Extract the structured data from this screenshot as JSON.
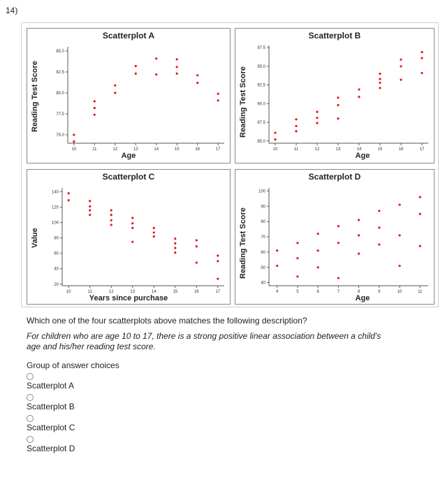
{
  "question_number": "14)",
  "plots": {
    "A": {
      "title": "Scatterplot A",
      "xlabel": "Age",
      "ylabel": "Reading Test Score",
      "xticks": [
        "10",
        "11",
        "12",
        "13",
        "14",
        "15",
        "16",
        "17"
      ],
      "yticks": [
        "85.0",
        "82.5",
        "80.0",
        "77.5",
        "75.0"
      ]
    },
    "B": {
      "title": "Scatterplot B",
      "xlabel": "Age",
      "ylabel": "Reading Test Score",
      "xticks": [
        "10",
        "11",
        "12",
        "13",
        "14",
        "15",
        "16",
        "17"
      ],
      "yticks": [
        "97.5",
        "95.0",
        "92.5",
        "90.0",
        "87.5",
        "85.0"
      ]
    },
    "C": {
      "title": "Scatterplot C",
      "xlabel": "Years since purchase",
      "ylabel": "Value",
      "xticks": [
        "10",
        "11",
        "12",
        "13",
        "14",
        "15",
        "16",
        "17"
      ],
      "yticks": [
        "140",
        "120",
        "100",
        "80",
        "60",
        "40",
        "20"
      ]
    },
    "D": {
      "title": "Scatterplot D",
      "xlabel": "Age",
      "ylabel": "Reading Test Score",
      "xticks": [
        "4",
        "5",
        "6",
        "7",
        "8",
        "9",
        "10",
        "11"
      ],
      "yticks": [
        "100",
        "90",
        "80",
        "70",
        "60",
        "50",
        "40"
      ]
    }
  },
  "chart_data": [
    {
      "type": "scatter",
      "title": "Scatterplot A",
      "xlabel": "Age",
      "ylabel": "Reading Test Score",
      "xlim": [
        9.7,
        17.3
      ],
      "ylim": [
        74.0,
        85.5
      ],
      "color": "#e8141b",
      "points": [
        [
          10,
          75.0
        ],
        [
          10,
          74.2
        ],
        [
          11,
          79.0
        ],
        [
          11,
          78.2
        ],
        [
          11,
          77.4
        ],
        [
          12,
          80.9
        ],
        [
          12,
          80.0
        ],
        [
          13,
          83.2
        ],
        [
          13,
          82.3
        ],
        [
          14,
          84.1
        ],
        [
          14,
          82.2
        ],
        [
          15,
          84.0
        ],
        [
          15,
          83.1
        ],
        [
          15,
          82.3
        ],
        [
          16,
          82.1
        ],
        [
          16,
          81.2
        ],
        [
          17,
          79.9
        ],
        [
          17,
          79.1
        ]
      ]
    },
    {
      "type": "scatter",
      "title": "Scatterplot B",
      "xlabel": "Age",
      "ylabel": "Reading Test Score",
      "xticks": [
        10,
        11,
        12,
        13,
        14,
        15,
        16,
        17
      ],
      "xlim": [
        9.7,
        17.3
      ],
      "ylim": [
        84.7,
        97.8
      ],
      "color": "#e8141b",
      "points": [
        [
          10,
          86.1
        ],
        [
          10,
          85.2
        ],
        [
          11,
          87.9
        ],
        [
          11,
          87.0
        ],
        [
          11,
          86.3
        ],
        [
          12,
          88.9
        ],
        [
          12,
          88.1
        ],
        [
          12,
          87.4
        ],
        [
          13,
          90.8
        ],
        [
          13,
          89.8
        ],
        [
          13,
          88.0
        ],
        [
          14,
          91.9
        ],
        [
          14,
          90.9
        ],
        [
          15,
          94.0
        ],
        [
          15,
          93.3
        ],
        [
          15,
          92.8
        ],
        [
          15,
          92.1
        ],
        [
          16,
          95.9
        ],
        [
          16,
          95.0
        ],
        [
          16,
          93.2
        ],
        [
          17,
          96.9
        ],
        [
          17,
          96.1
        ],
        [
          17,
          94.1
        ]
      ]
    },
    {
      "type": "scatter",
      "title": "Scatterplot C",
      "xlabel": "Years since purchase",
      "ylabel": "Value",
      "xlim": [
        9.7,
        17.3
      ],
      "ylim": [
        18,
        145
      ],
      "color": "#e8141b",
      "points": [
        [
          10,
          138
        ],
        [
          10,
          129
        ],
        [
          11,
          128
        ],
        [
          11,
          121
        ],
        [
          11,
          116
        ],
        [
          11,
          110
        ],
        [
          12,
          116
        ],
        [
          12,
          110
        ],
        [
          12,
          103
        ],
        [
          12,
          97
        ],
        [
          13,
          106
        ],
        [
          13,
          99
        ],
        [
          13,
          93
        ],
        [
          13,
          75
        ],
        [
          14,
          93
        ],
        [
          14,
          87
        ],
        [
          14,
          82
        ],
        [
          15,
          79
        ],
        [
          15,
          73
        ],
        [
          15,
          67
        ],
        [
          15,
          61
        ],
        [
          16,
          77
        ],
        [
          16,
          69
        ],
        [
          16,
          48
        ],
        [
          17,
          57
        ],
        [
          17,
          50
        ],
        [
          17,
          27
        ]
      ]
    },
    {
      "type": "scatter",
      "title": "Scatterplot D",
      "xlabel": "Age",
      "ylabel": "Reading Test Score",
      "xlim": [
        3.6,
        11.4
      ],
      "ylim": [
        38,
        102
      ],
      "color": "#e8141b",
      "points": [
        [
          4,
          61
        ],
        [
          4,
          51
        ],
        [
          5,
          66
        ],
        [
          5,
          56
        ],
        [
          5,
          44
        ],
        [
          6,
          72
        ],
        [
          6,
          61
        ],
        [
          6,
          50
        ],
        [
          7,
          77
        ],
        [
          7,
          66
        ],
        [
          7,
          43
        ],
        [
          8,
          81
        ],
        [
          8,
          71
        ],
        [
          8,
          59
        ],
        [
          9,
          87
        ],
        [
          9,
          76
        ],
        [
          9,
          65
        ],
        [
          10,
          91
        ],
        [
          10,
          71
        ],
        [
          10,
          51
        ],
        [
          11,
          96
        ],
        [
          11,
          85
        ],
        [
          11,
          64
        ]
      ]
    }
  ],
  "question_text": "Which one of the four scatterplots above matches the following description?",
  "description": "For children who are age 10 to 17, there is a strong positive linear association between a child's age and his/her reading test score.",
  "choices_title": "Group of answer choices",
  "choices": [
    "Scatterplot A",
    "Scatterplot B",
    "Scatterplot C",
    "Scatterplot D"
  ]
}
